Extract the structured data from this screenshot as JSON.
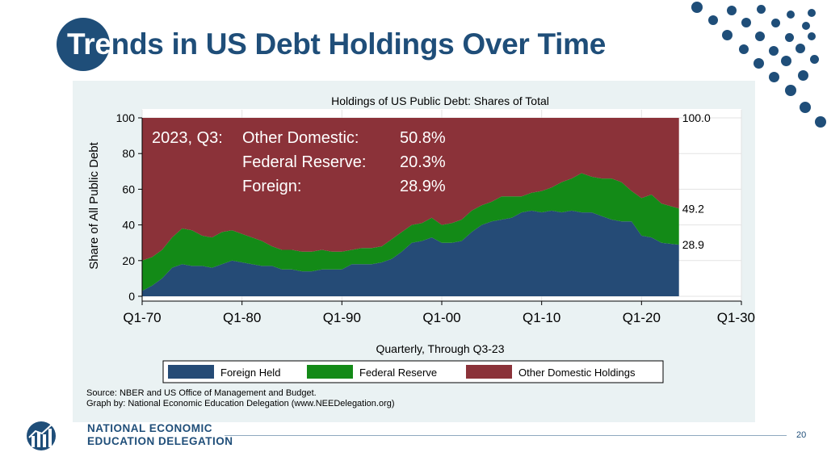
{
  "slide": {
    "title_first": "Tre",
    "title_rest": "nds in US Debt Holdings Over Time",
    "page_number": "20",
    "org_line1": "NATIONAL ECONOMIC",
    "org_line2": "EDUCATION DELEGATION"
  },
  "colors": {
    "brand_blue": "#1f4e79",
    "foreign": "#254b76",
    "federal_reserve": "#138a17",
    "other_domestic": "#8b3239",
    "panel_bg": "#eaf2f3"
  },
  "chart_data": {
    "type": "area",
    "stacked": true,
    "title": "Holdings of US Public Debt: Shares of Total",
    "xlabel": "Quarterly, Through Q3-23",
    "ylabel": "Share of All Public Debt",
    "xlim": [
      1970,
      2030
    ],
    "ylim": [
      0,
      100
    ],
    "x_tick_labels": [
      "Q1-70",
      "Q1-80",
      "Q1-90",
      "Q1-00",
      "Q1-10",
      "Q1-20",
      "Q1-30"
    ],
    "y_tick_labels": [
      "0",
      "20",
      "40",
      "60",
      "80",
      "100"
    ],
    "x": [
      1970,
      1971,
      1972,
      1973,
      1974,
      1975,
      1976,
      1977,
      1978,
      1979,
      1980,
      1981,
      1982,
      1983,
      1984,
      1985,
      1986,
      1987,
      1988,
      1989,
      1990,
      1991,
      1992,
      1993,
      1994,
      1995,
      1996,
      1997,
      1998,
      1999,
      2000,
      2001,
      2002,
      2003,
      2004,
      2005,
      2006,
      2007,
      2008,
      2009,
      2010,
      2011,
      2012,
      2013,
      2014,
      2015,
      2016,
      2017,
      2018,
      2019,
      2020,
      2021,
      2022,
      2023.75
    ],
    "series": [
      {
        "name": "Foreign Held",
        "values": [
          3,
          6,
          10,
          16,
          18,
          17,
          17,
          16,
          18,
          20,
          19,
          18,
          17,
          17,
          15,
          15,
          14,
          14,
          15,
          15,
          15,
          18,
          18,
          18,
          19,
          21,
          25,
          30,
          31,
          33,
          30,
          30,
          31,
          36,
          40,
          42,
          43,
          44,
          47,
          48,
          47,
          48,
          47,
          48,
          47,
          47,
          45,
          43,
          42,
          42,
          34,
          33,
          30,
          28.9
        ]
      },
      {
        "name": "Federal Reserve",
        "values": [
          17,
          16,
          16,
          17,
          20,
          20,
          17,
          17,
          18,
          17,
          16,
          15,
          14,
          11,
          11,
          11,
          11,
          11,
          11,
          10,
          10,
          8,
          9,
          9,
          9,
          11,
          11,
          10,
          10,
          11,
          10,
          11,
          12,
          12,
          11,
          11,
          13,
          12,
          9,
          10,
          12,
          13,
          17,
          18,
          22,
          20,
          21,
          23,
          22,
          17,
          21,
          24,
          22,
          20.3
        ]
      },
      {
        "name": "Other Domestic Holdings",
        "values": [
          80,
          78,
          74,
          67,
          62,
          63,
          66,
          67,
          64,
          63,
          65,
          67,
          69,
          72,
          74,
          74,
          75,
          75,
          74,
          75,
          75,
          74,
          73,
          73,
          72,
          68,
          64,
          60,
          59,
          56,
          60,
          59,
          57,
          52,
          49,
          47,
          44,
          44,
          44,
          42,
          41,
          39,
          36,
          34,
          31,
          33,
          34,
          34,
          36,
          41,
          45,
          43,
          48,
          50.8
        ]
      }
    ],
    "end_labels": [
      "100.0",
      "49.2",
      "28.9"
    ],
    "inset_note": {
      "date": "2023, Q3:",
      "rows": [
        {
          "label": "Other Domestic:",
          "value": "50.8%"
        },
        {
          "label": "Federal Reserve:",
          "value": "20.3%"
        },
        {
          "label": "Foreign:",
          "value": "28.9%"
        }
      ]
    },
    "legend": {
      "placement": "bottom",
      "items": [
        "Foreign Held",
        "Federal Reserve",
        "Other Domestic Holdings"
      ]
    },
    "source_lines": [
      "Source: NBER and US Office of Management and Budget.",
      "Graph by: National Economic Education Delegation (www.NEEDelegation.org)"
    ],
    "grid": true
  }
}
